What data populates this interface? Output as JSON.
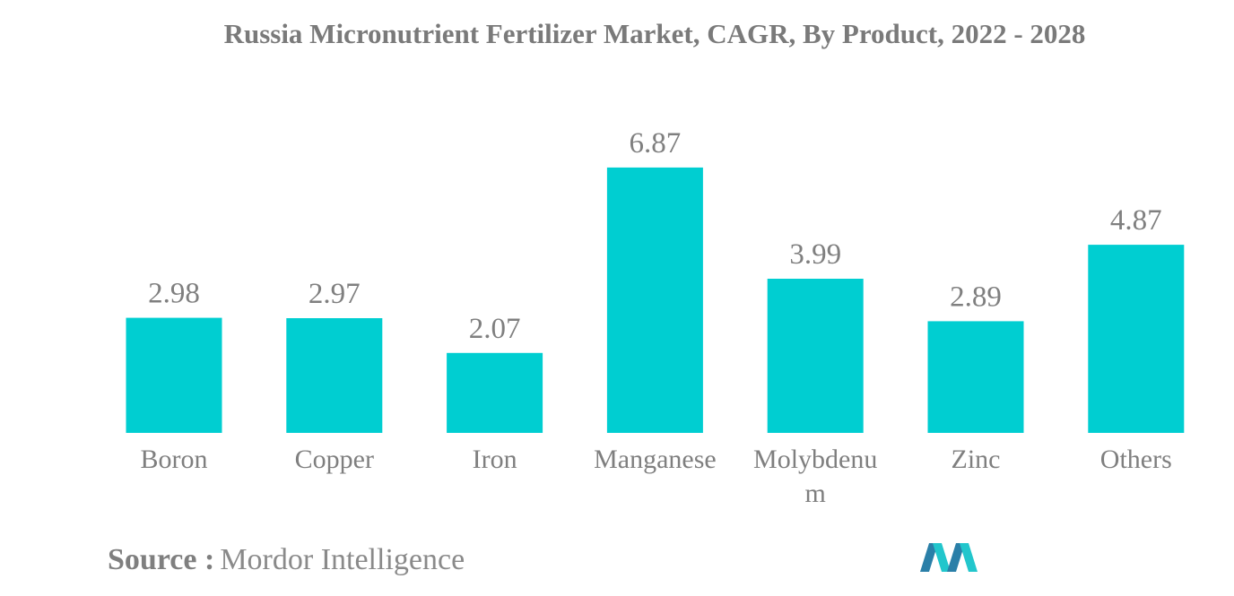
{
  "title": "Russia Micronutrient Fertilizer Market, CAGR, By Product, 2022 - 2028",
  "source_label": "Source :",
  "source_value": "Mordor Intelligence",
  "colors": {
    "bar": "#00CED1",
    "text": "#7f7f7f",
    "logo_dark": "#2a7fa8",
    "logo_light": "#22c6cc"
  },
  "chart_data": {
    "type": "bar",
    "title": "Russia Micronutrient Fertilizer Market, CAGR, By Product, 2022 - 2028",
    "categories": [
      "Boron",
      "Copper",
      "Iron",
      "Manganese",
      "Molybdenum",
      "Zinc",
      "Others"
    ],
    "category_labels": [
      [
        "Boron"
      ],
      [
        "Copper"
      ],
      [
        "Iron"
      ],
      [
        "Manganese"
      ],
      [
        "Molybdenu",
        "m"
      ],
      [
        "Zinc"
      ],
      [
        "Others"
      ]
    ],
    "values": [
      2.98,
      2.97,
      2.07,
      6.87,
      3.99,
      2.89,
      4.87
    ],
    "value_labels": [
      "2.98",
      "2.97",
      "2.07",
      "6.87",
      "3.99",
      "2.89",
      "4.87"
    ],
    "xlabel": "",
    "ylabel": "",
    "grid": false,
    "legend": "none"
  }
}
